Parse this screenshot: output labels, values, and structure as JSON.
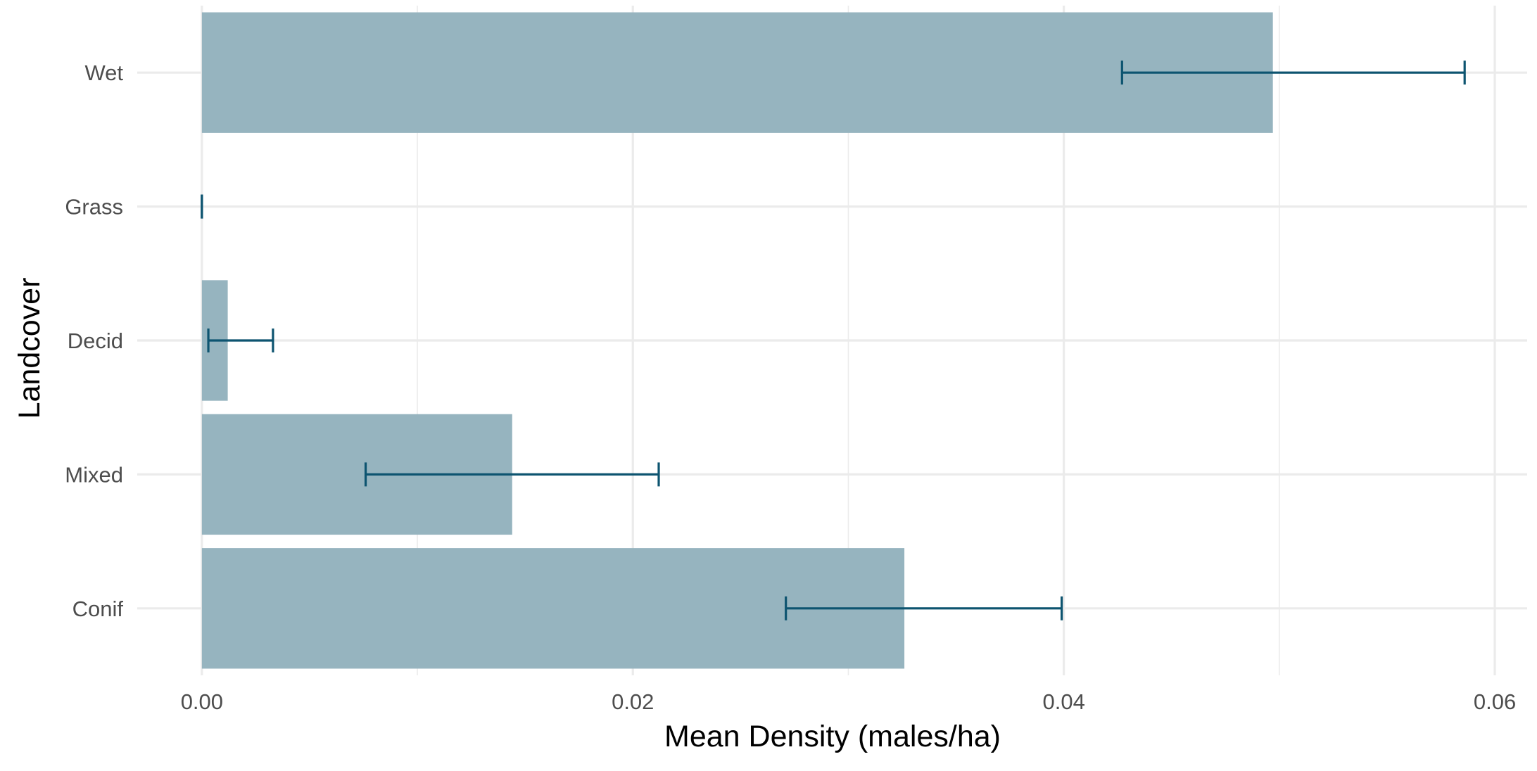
{
  "chart_data": {
    "type": "bar",
    "orientation": "horizontal",
    "title": "",
    "xlabel": "Mean Density (males/ha)",
    "ylabel": "Landcover",
    "categories": [
      "Conif",
      "Mixed",
      "Decid",
      "Grass",
      "Wet"
    ],
    "values": [
      0.0326,
      0.0144,
      0.0012,
      0.0,
      0.0497
    ],
    "error_low": [
      0.0271,
      0.0076,
      0.0003,
      0.0,
      0.0427
    ],
    "error_high": [
      0.0399,
      0.0212,
      0.0033,
      0.0,
      0.0586
    ],
    "xlim": [
      -0.003,
      0.0615
    ],
    "x_ticks": [
      0.0,
      0.02,
      0.04,
      0.06
    ],
    "x_tick_labels": [
      "0.00",
      "0.02",
      "0.04",
      "0.06"
    ],
    "grid": true,
    "legend": "none",
    "colors": {
      "bar": "#96b4bf",
      "error_bar": "#0d5470",
      "grid": "#ebebeb"
    }
  }
}
